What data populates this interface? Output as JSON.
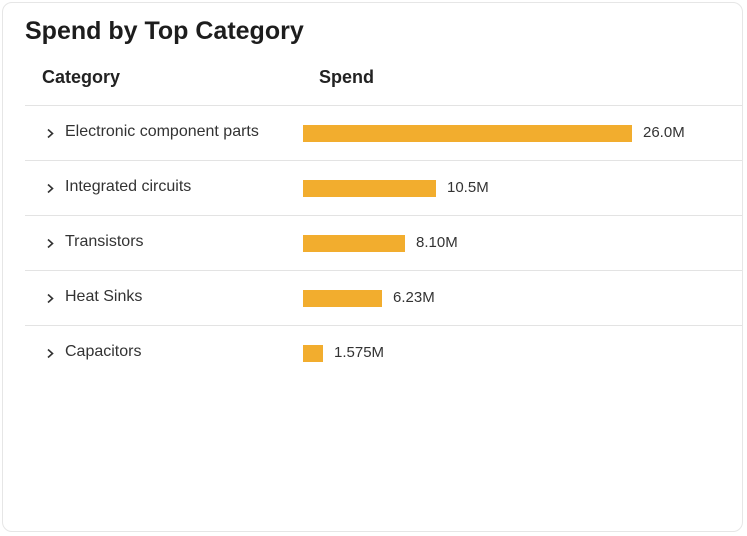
{
  "card": {
    "title": "Spend by Top Category",
    "columns": {
      "category": "Category",
      "spend": "Spend"
    }
  },
  "chart_data": {
    "type": "bar",
    "orientation": "horizontal",
    "title": "Spend by Top Category",
    "categories": [
      "Electronic component parts",
      "Integrated circuits",
      "Transistors",
      "Heat Sinks",
      "Capacitors"
    ],
    "values": [
      26000000,
      10500000,
      8100000,
      6230000,
      1575000
    ],
    "value_labels": [
      "26.0M",
      "10.5M",
      "8.10M",
      "6.23M",
      "1.575M"
    ],
    "xlabel": "Spend",
    "ylabel": "Category",
    "bar_color": "#f2ad2e",
    "grid": false,
    "legend": "none"
  },
  "icons": {
    "row_expand": "chevron-right-icon"
  }
}
